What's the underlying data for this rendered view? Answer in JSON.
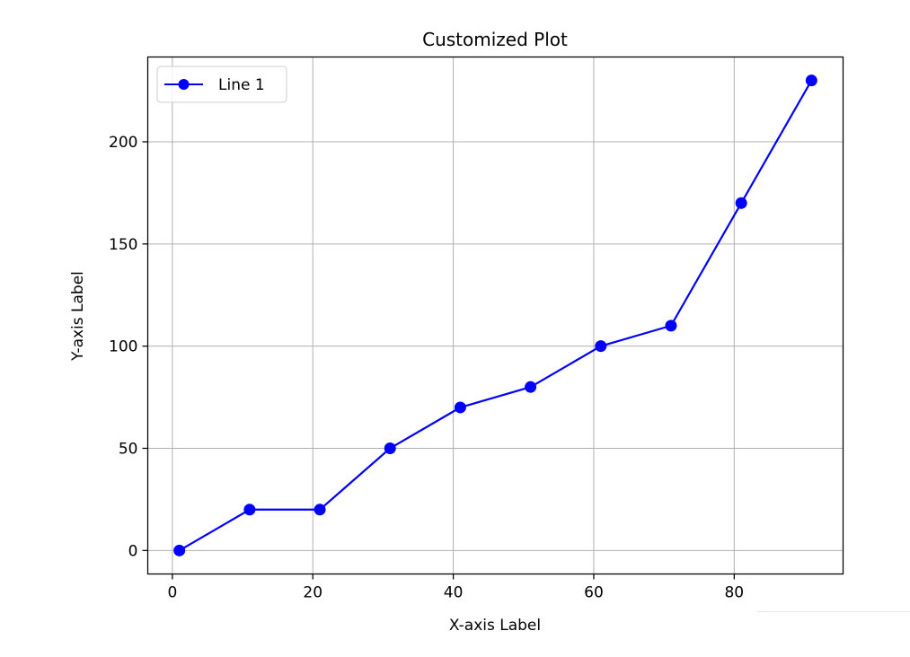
{
  "chart_data": {
    "type": "line",
    "title": "Customized Plot",
    "xlabel": "X-axis Label",
    "ylabel": "Y-axis Label",
    "xlim": [
      -3.5,
      95.5
    ],
    "ylim": [
      -11.5,
      241.5
    ],
    "xticks": [
      0,
      20,
      40,
      60,
      80
    ],
    "yticks": [
      0,
      50,
      100,
      150,
      200
    ],
    "grid": true,
    "legend_position": "upper-left",
    "series": [
      {
        "name": "Line 1",
        "color": "#0000ff",
        "marker": "circle",
        "x": [
          1,
          11,
          21,
          31,
          41,
          51,
          61,
          71,
          81,
          91
        ],
        "y": [
          0,
          20,
          20,
          50,
          70,
          80,
          100,
          110,
          170,
          230
        ]
      }
    ]
  }
}
